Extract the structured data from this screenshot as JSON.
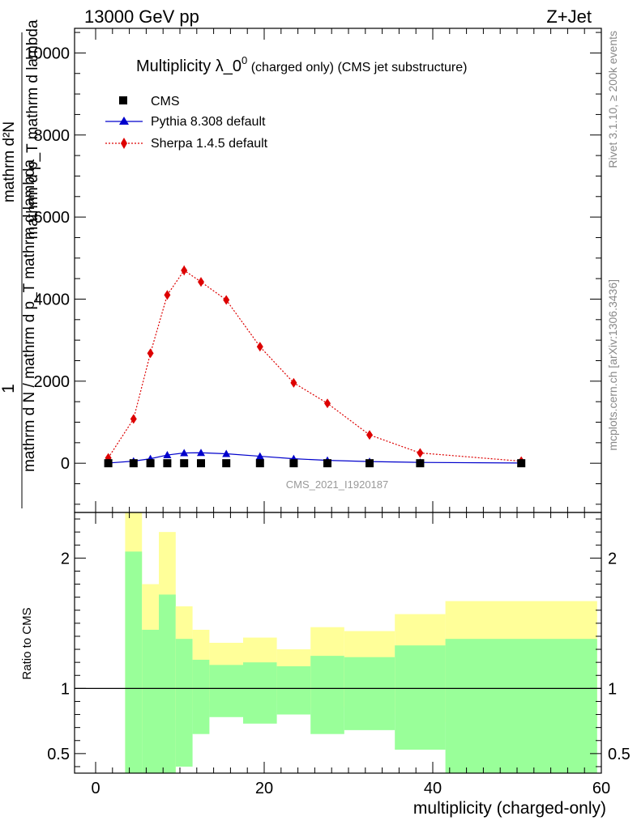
{
  "header": {
    "energy_label": "13000 GeV pp",
    "process_label": "Z+Jet"
  },
  "side_labels": {
    "rivet": "Rivet 3.1.10, ≥ 200k events",
    "mcplots": "mcplots.cern.ch [arXiv:1306.3436]"
  },
  "colors": {
    "cms": "#000000",
    "pythia": "#0000cc",
    "sherpa": "#dd0000",
    "band_inner": "#99ff99",
    "band_outer": "#ffff99"
  },
  "chart_data": [
    {
      "type": "scatter",
      "panel": "main",
      "title_main": "Multiplicity λ_0",
      "title_sup": "0",
      "title_rest": " (charged only) (CMS jet substructure)",
      "ylabel_fraction_numerator": "1",
      "ylabel_fraction_denominator": "mathrm d N / mathrm d p_T mathrm d lambda",
      "ylabel_top_line1": "mathrm d²N",
      "ylabel_top_line2": "mathrm d p_T mathrm d lambda",
      "analysis_label": "CMS_2021_I1920187",
      "xlim": [
        -2.5,
        60
      ],
      "ylim": [
        -1200,
        10600
      ],
      "y_ticks": [
        0,
        2000,
        4000,
        6000,
        8000,
        10000
      ],
      "y_tick_labels": [
        "0",
        "2000",
        "4000",
        "6000",
        "8000",
        "10000"
      ],
      "legend": [
        "CMS",
        "Pythia 8.308 default",
        "Sherpa 1.4.5 default"
      ],
      "series": [
        {
          "name": "CMS",
          "marker": "square",
          "x": [
            1.5,
            4.5,
            6.5,
            8.5,
            10.5,
            12.5,
            15.5,
            19.5,
            23.5,
            27.5,
            32.5,
            38.5,
            50.5
          ],
          "y": [
            0,
            0,
            0,
            0,
            0,
            0,
            0,
            0,
            0,
            0,
            0,
            0,
            0
          ]
        },
        {
          "name": "Pythia 8.308 default",
          "marker": "triangle",
          "x": [
            1.5,
            4.5,
            6.5,
            8.5,
            10.5,
            12.5,
            15.5,
            19.5,
            23.5,
            27.5,
            32.5,
            38.5,
            50.5
          ],
          "y": [
            5,
            50,
            110,
            200,
            250,
            255,
            230,
            170,
            110,
            70,
            40,
            20,
            5
          ]
        },
        {
          "name": "Sherpa 1.4.5 default",
          "marker": "diamond",
          "x": [
            1.5,
            4.5,
            6.5,
            8.5,
            10.5,
            12.5,
            15.5,
            19.5,
            23.5,
            27.5,
            32.5,
            38.5,
            50.5
          ],
          "y": [
            130,
            1080,
            2680,
            4100,
            4700,
            4420,
            3980,
            2840,
            1960,
            1460,
            690,
            250,
            50
          ],
          "yerr": [
            30,
            70,
            90,
            110,
            120,
            110,
            70,
            50,
            40,
            30,
            30,
            20,
            10
          ]
        }
      ]
    },
    {
      "type": "area",
      "panel": "ratio",
      "xlabel": "multiplicity (charged-only)",
      "ylabel": "Ratio to CMS",
      "xlim": [
        -2.5,
        60
      ],
      "ylim": [
        0.35,
        2.35
      ],
      "x_ticks": [
        0,
        20,
        40,
        60
      ],
      "x_tick_labels": [
        "0",
        "20",
        "40",
        "60"
      ],
      "y_ticks": [
        0.5,
        1,
        2
      ],
      "y_tick_labels": [
        "0.5",
        "1",
        "2"
      ],
      "reference_line": 1,
      "bins": [
        {
          "x0": 3.5,
          "x1": 5.5,
          "inner": [
            0.35,
            2.05
          ],
          "outer": [
            0.35,
            2.35
          ]
        },
        {
          "x0": 5.5,
          "x1": 7.5,
          "inner": [
            0.35,
            1.45
          ],
          "outer": [
            0.68,
            1.8
          ]
        },
        {
          "x0": 7.5,
          "x1": 9.5,
          "inner": [
            0.35,
            1.72
          ],
          "outer": [
            0.35,
            2.2
          ]
        },
        {
          "x0": 9.5,
          "x1": 11.5,
          "inner": [
            0.4,
            1.38
          ],
          "outer": [
            0.76,
            1.63
          ]
        },
        {
          "x0": 11.5,
          "x1": 13.5,
          "inner": [
            0.65,
            1.22
          ],
          "outer": [
            0.84,
            1.45
          ]
        },
        {
          "x0": 13.5,
          "x1": 17.5,
          "inner": [
            0.78,
            1.18
          ],
          "outer": [
            0.9,
            1.35
          ]
        },
        {
          "x0": 17.5,
          "x1": 21.5,
          "inner": [
            0.73,
            1.2
          ],
          "outer": [
            0.88,
            1.39
          ]
        },
        {
          "x0": 21.5,
          "x1": 25.5,
          "inner": [
            0.8,
            1.17
          ],
          "outer": [
            0.91,
            1.3
          ]
        },
        {
          "x0": 25.5,
          "x1": 29.5,
          "inner": [
            0.65,
            1.25
          ],
          "outer": [
            0.85,
            1.47
          ]
        },
        {
          "x0": 29.5,
          "x1": 35.5,
          "inner": [
            0.68,
            1.24
          ],
          "outer": [
            0.86,
            1.44
          ]
        },
        {
          "x0": 35.5,
          "x1": 41.5,
          "inner": [
            0.53,
            1.33
          ],
          "outer": [
            0.8,
            1.57
          ]
        },
        {
          "x0": 41.5,
          "x1": 59.5,
          "inner": [
            0.35,
            1.38
          ],
          "outer": [
            0.74,
            1.67
          ]
        }
      ]
    }
  ]
}
